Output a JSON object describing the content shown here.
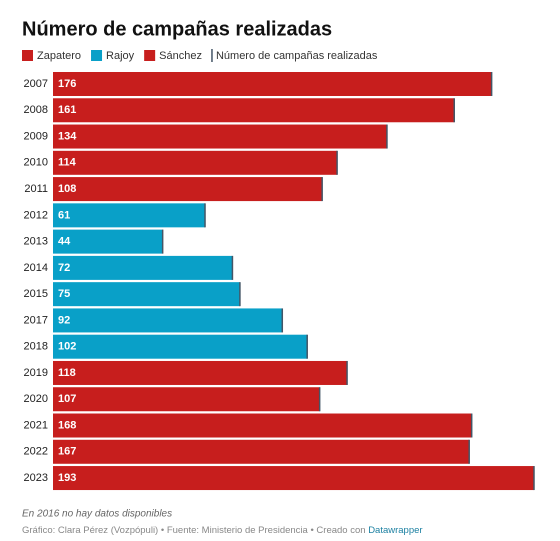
{
  "chart_data": {
    "type": "bar",
    "orientation": "horizontal",
    "title": "Número de campañas realizadas",
    "marker_label": "Número de campañas realizadas",
    "categories": [
      "2007",
      "2008",
      "2009",
      "2010",
      "2011",
      "2012",
      "2013",
      "2014",
      "2015",
      "2017",
      "2018",
      "2019",
      "2020",
      "2021",
      "2022",
      "2023"
    ],
    "series": [
      {
        "name": "Zapatero",
        "color": "#c71e1d",
        "values": [
          176,
          161,
          134,
          114,
          108,
          null,
          null,
          null,
          null,
          null,
          null,
          null,
          null,
          null,
          null,
          null
        ]
      },
      {
        "name": "Rajoy",
        "color": "#09a0c8",
        "values": [
          null,
          null,
          null,
          null,
          null,
          61,
          44,
          72,
          75,
          92,
          102,
          null,
          null,
          null,
          null,
          null
        ]
      },
      {
        "name": "Sánchez",
        "color": "#c71e1d",
        "values": [
          null,
          null,
          null,
          null,
          null,
          null,
          null,
          null,
          null,
          null,
          null,
          118,
          107,
          168,
          167,
          193
        ]
      }
    ],
    "note": "En 2016 no hay datos disponibles",
    "credit": "Gráfico: Clara Pérez (Vozpópuli) • Fuente: Ministerio de Presidencia • Creado con",
    "credit_link": "Datawrapper"
  }
}
